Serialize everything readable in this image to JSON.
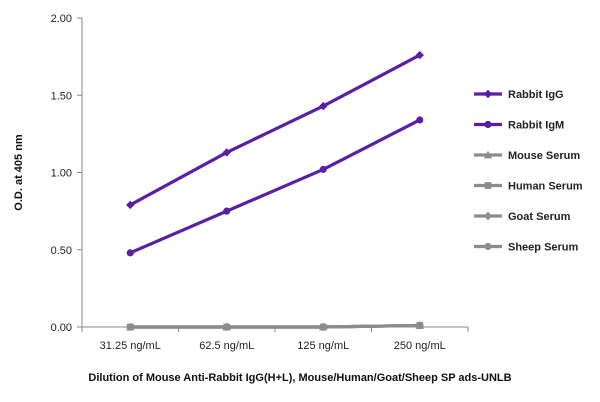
{
  "chart_data": {
    "type": "line",
    "title": "",
    "xlabel": "Dilution of Mouse Anti-Rabbit IgG(H+L), Mouse/Human/Goat/Sheep SP ads-UNLB",
    "ylabel": "O.D. at 405 nm",
    "categories": [
      "31.25 ng/mL",
      "62.5 ng/mL",
      "125 ng/mL",
      "250 ng/mL"
    ],
    "ylim": [
      0,
      2
    ],
    "yticks": [
      "0.00",
      "0.50",
      "1.00",
      "1.50",
      "2.00"
    ],
    "grid": false,
    "legend_position": "right",
    "series": [
      {
        "name": "Rabbit IgG",
        "values": [
          0.79,
          1.13,
          1.43,
          1.76
        ],
        "color": "#5b1fa6",
        "marker": "diamond"
      },
      {
        "name": "Rabbit IgM",
        "values": [
          0.48,
          0.75,
          1.02,
          1.34
        ],
        "color": "#5b1fa6",
        "marker": "circle"
      },
      {
        "name": "Mouse Serum",
        "values": [
          0.0,
          0.0,
          0.0,
          0.01
        ],
        "color": "#8c8c8c",
        "marker": "triangle"
      },
      {
        "name": "Human Serum",
        "values": [
          0.0,
          0.0,
          0.0,
          0.01
        ],
        "color": "#8c8c8c",
        "marker": "square"
      },
      {
        "name": "Goat Serum",
        "values": [
          0.0,
          0.0,
          0.0,
          0.01
        ],
        "color": "#8c8c8c",
        "marker": "diamond"
      },
      {
        "name": "Sheep Serum",
        "values": [
          0.0,
          0.0,
          0.0,
          0.01
        ],
        "color": "#8c8c8c",
        "marker": "circle"
      }
    ]
  }
}
